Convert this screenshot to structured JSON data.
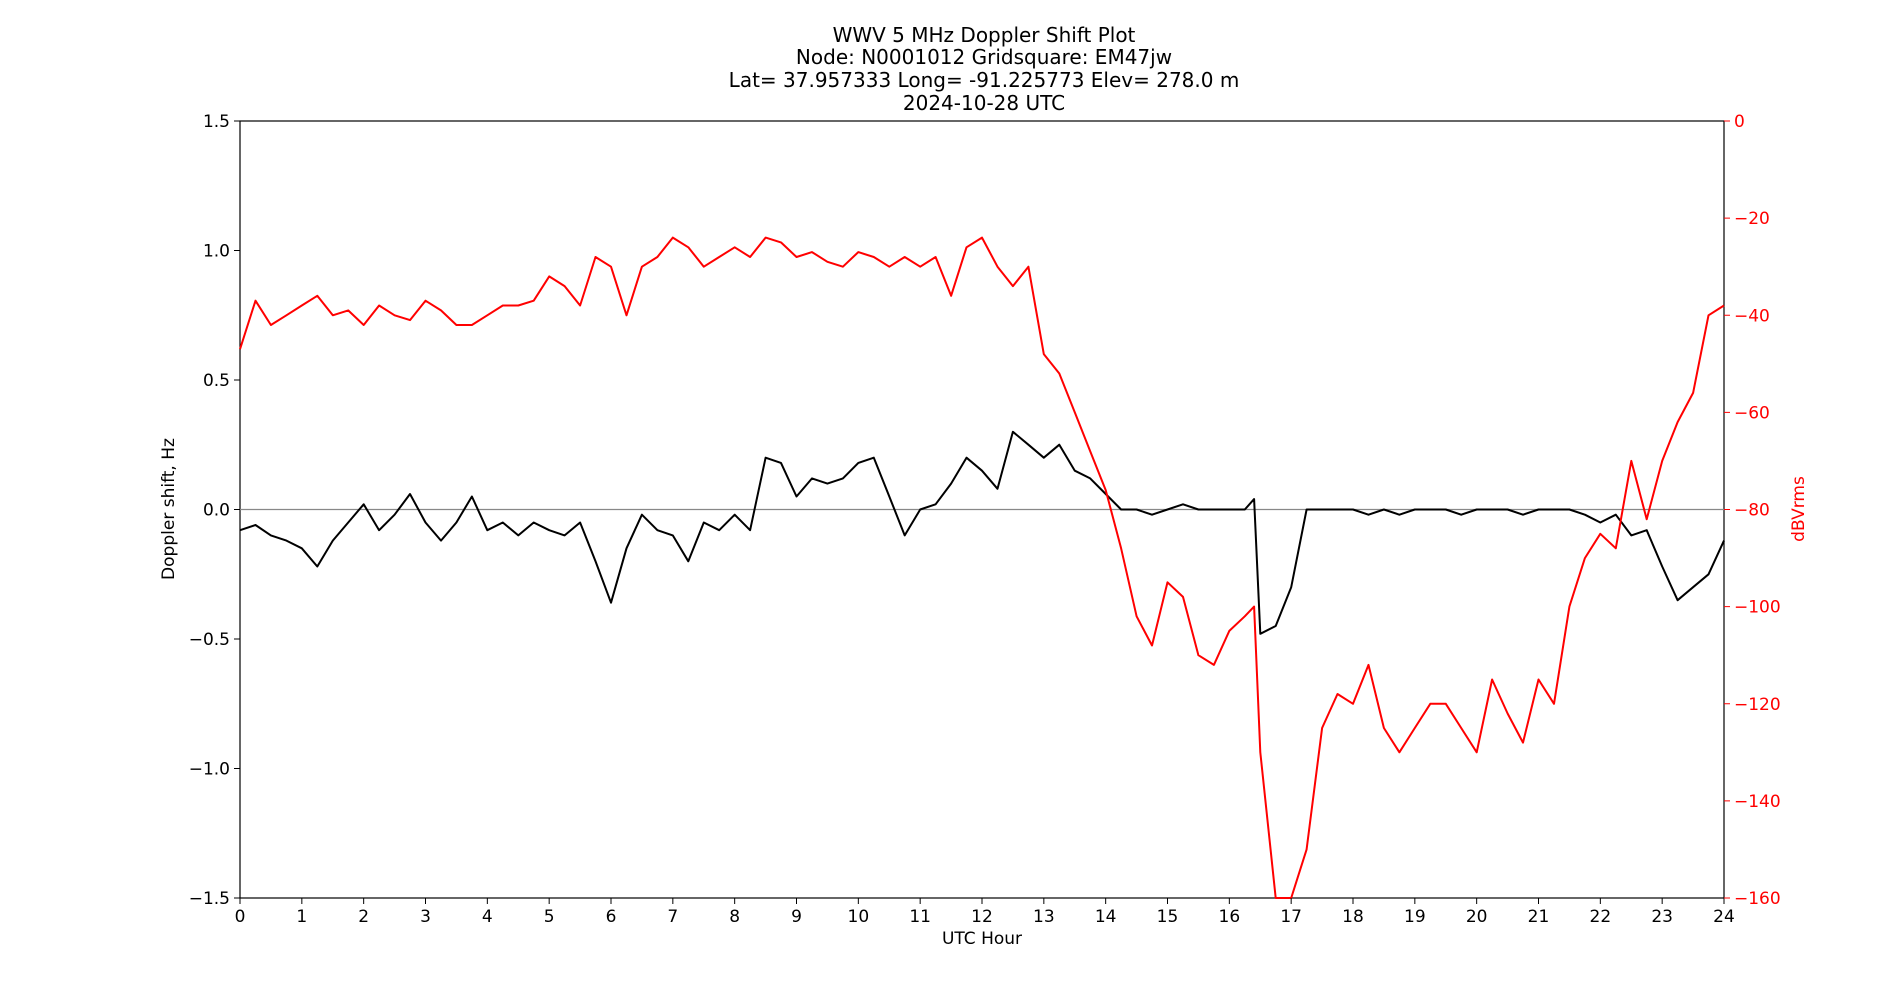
{
  "chart_data": {
    "type": "line",
    "title_lines": [
      "WWV 5 MHz Doppler Shift Plot",
      "Node:  N0001012     Gridsquare:  EM47jw",
      "Lat= 37.957333    Long= -91.225773    Elev= 278.0 m",
      "2024-10-28  UTC"
    ],
    "xlabel": "UTC Hour",
    "ylabel_left": "Doppler shift, Hz",
    "ylabel_right": "dBVrms",
    "xlim": [
      0,
      24
    ],
    "ylim_left": [
      -1.5,
      1.5
    ],
    "ylim_right": [
      -160,
      0
    ],
    "x_ticks": [
      "0",
      "1",
      "2",
      "3",
      "4",
      "5",
      "6",
      "7",
      "8",
      "9",
      "10",
      "11",
      "12",
      "13",
      "14",
      "15",
      "16",
      "17",
      "18",
      "19",
      "20",
      "21",
      "22",
      "23",
      "24"
    ],
    "y_ticks_left": [
      "1.5",
      "1.0",
      "0.5",
      "0.0",
      "−0.5",
      "−1.0",
      "−1.5"
    ],
    "y_ticks_right": [
      "0",
      "−20",
      "−40",
      "−60",
      "−80",
      "−100",
      "−120",
      "−140",
      "−160"
    ],
    "zero_line": 0.0,
    "series": [
      {
        "axis": "left",
        "color": "#000000",
        "x": [
          0,
          0.25,
          0.5,
          0.75,
          1,
          1.25,
          1.5,
          1.75,
          2,
          2.25,
          2.5,
          2.75,
          3,
          3.25,
          3.5,
          3.75,
          4,
          4.25,
          4.5,
          4.75,
          5,
          5.25,
          5.5,
          5.75,
          6,
          6.25,
          6.5,
          6.75,
          7,
          7.25,
          7.5,
          7.75,
          8,
          8.25,
          8.5,
          8.75,
          9,
          9.25,
          9.5,
          9.75,
          10,
          10.25,
          10.5,
          10.75,
          11,
          11.25,
          11.5,
          11.75,
          12,
          12.25,
          12.5,
          12.75,
          13,
          13.25,
          13.5,
          13.75,
          14,
          14.25,
          14.5,
          14.75,
          15,
          15.25,
          15.5,
          15.75,
          16,
          16.25,
          16.4,
          16.5,
          16.75,
          17,
          17.25,
          17.5,
          17.75,
          18,
          18.25,
          18.5,
          18.75,
          19,
          19.25,
          19.5,
          19.75,
          20,
          20.25,
          20.5,
          20.75,
          21,
          21.25,
          21.5,
          21.75,
          22,
          22.25,
          22.5,
          22.75,
          23,
          23.25,
          23.5,
          23.75,
          24
        ],
        "values": [
          -0.08,
          -0.06,
          -0.1,
          -0.12,
          -0.15,
          -0.22,
          -0.12,
          -0.05,
          0.02,
          -0.08,
          -0.02,
          0.06,
          -0.05,
          -0.12,
          -0.05,
          0.05,
          -0.08,
          -0.05,
          -0.1,
          -0.05,
          -0.08,
          -0.1,
          -0.05,
          -0.2,
          -0.36,
          -0.15,
          -0.02,
          -0.08,
          -0.1,
          -0.2,
          -0.05,
          -0.08,
          -0.02,
          -0.08,
          0.2,
          0.18,
          0.05,
          0.12,
          0.1,
          0.12,
          0.18,
          0.2,
          0.05,
          -0.1,
          0.0,
          0.02,
          0.1,
          0.2,
          0.15,
          0.08,
          0.3,
          0.25,
          0.2,
          0.25,
          0.15,
          0.12,
          0.06,
          0.0,
          0.0,
          -0.02,
          0.0,
          0.02,
          0.0,
          0.0,
          0.0,
          0.0,
          0.04,
          -0.48,
          -0.45,
          -0.3,
          0.0,
          0.0,
          0.0,
          0.0,
          -0.02,
          0.0,
          -0.02,
          0.0,
          0.0,
          0.0,
          -0.02,
          0.0,
          0.0,
          0.0,
          -0.02,
          0.0,
          0.0,
          0.0,
          -0.02,
          -0.05,
          -0.02,
          -0.1,
          -0.08,
          -0.22,
          -0.35,
          -0.3,
          -0.25,
          -0.12
        ]
      },
      {
        "axis": "right",
        "color": "#ff0000",
        "x": [
          0,
          0.25,
          0.5,
          0.75,
          1,
          1.25,
          1.5,
          1.75,
          2,
          2.25,
          2.5,
          2.75,
          3,
          3.25,
          3.5,
          3.75,
          4,
          4.25,
          4.5,
          4.75,
          5,
          5.25,
          5.5,
          5.75,
          6,
          6.25,
          6.5,
          6.75,
          7,
          7.25,
          7.5,
          7.75,
          8,
          8.25,
          8.5,
          8.75,
          9,
          9.25,
          9.5,
          9.75,
          10,
          10.25,
          10.5,
          10.75,
          11,
          11.25,
          11.5,
          11.75,
          12,
          12.25,
          12.5,
          12.75,
          13,
          13.25,
          13.5,
          13.75,
          14,
          14.25,
          14.5,
          14.75,
          15,
          15.25,
          15.5,
          15.75,
          16,
          16.25,
          16.4,
          16.5,
          16.75,
          17,
          17.25,
          17.5,
          17.75,
          18,
          18.25,
          18.5,
          18.75,
          19,
          19.25,
          19.5,
          19.75,
          20,
          20.25,
          20.5,
          20.75,
          21,
          21.25,
          21.5,
          21.75,
          22,
          22.25,
          22.5,
          22.75,
          23,
          23.25,
          23.5,
          23.75,
          24
        ],
        "values": [
          -47,
          -37,
          -42,
          -40,
          -38,
          -36,
          -40,
          -39,
          -42,
          -38,
          -40,
          -41,
          -37,
          -39,
          -42,
          -42,
          -40,
          -38,
          -38,
          -37,
          -32,
          -34,
          -38,
          -28,
          -30,
          -40,
          -30,
          -28,
          -24,
          -26,
          -30,
          -28,
          -26,
          -28,
          -24,
          -25,
          -28,
          -27,
          -29,
          -30,
          -27,
          -28,
          -30,
          -28,
          -30,
          -28,
          -36,
          -26,
          -24,
          -30,
          -34,
          -30,
          -48,
          -52,
          -60,
          -68,
          -76,
          -88,
          -102,
          -108,
          -95,
          -98,
          -110,
          -112,
          -105,
          -102,
          -100,
          -130,
          -162,
          -160,
          -150,
          -125,
          -118,
          -120,
          -112,
          -125,
          -130,
          -125,
          -120,
          -120,
          -125,
          -130,
          -115,
          -122,
          -128,
          -115,
          -120,
          -100,
          -90,
          -85,
          -88,
          -70,
          -82,
          -70,
          -62,
          -56,
          -40,
          -38
        ]
      }
    ]
  }
}
